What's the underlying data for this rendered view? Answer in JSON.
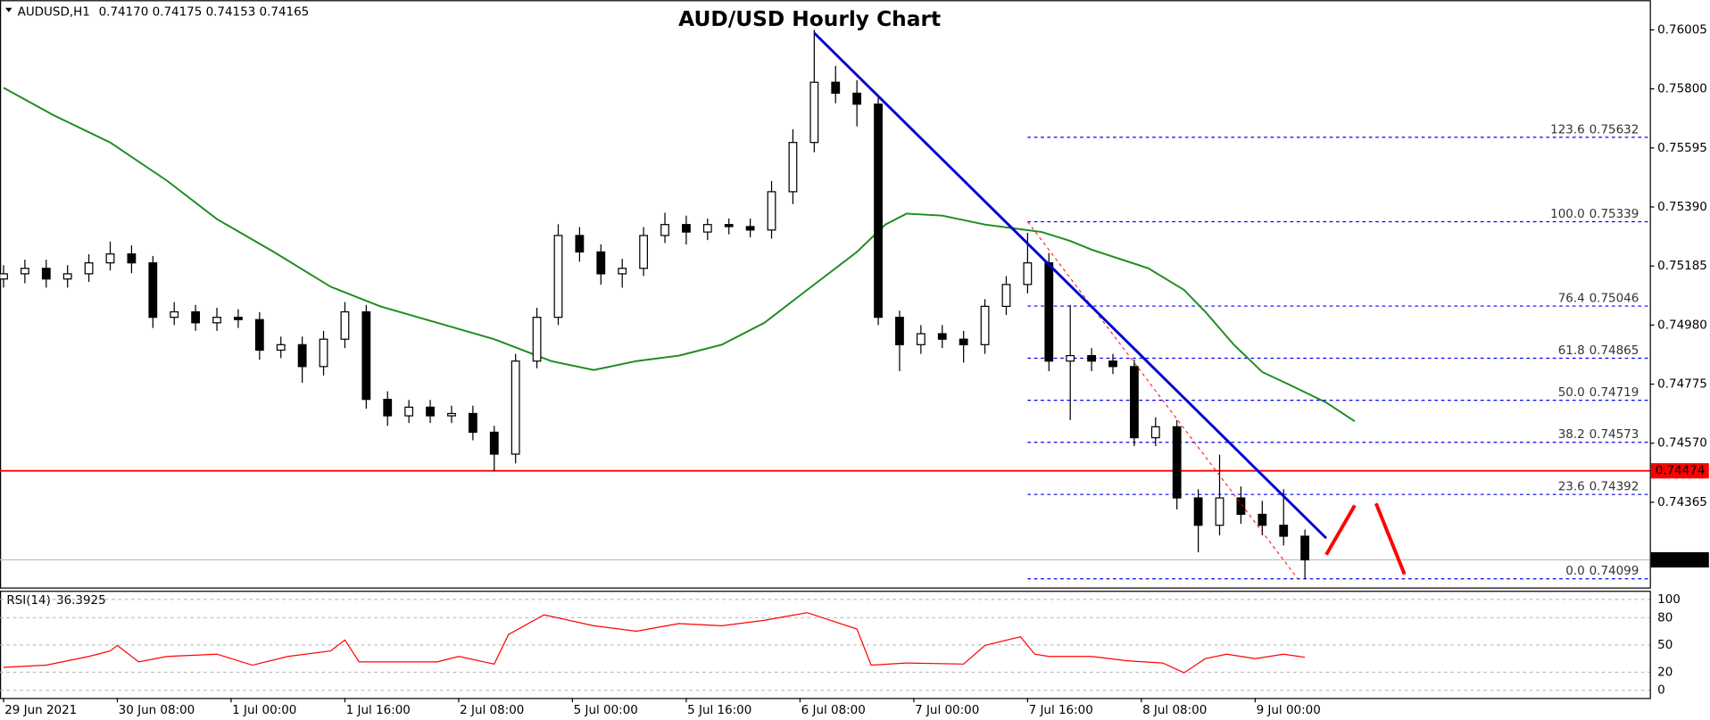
{
  "header": {
    "symbol": "AUDUSD,H1",
    "ohlc": "0.74170 0.74175 0.74153 0.74165"
  },
  "chart_data": [
    {
      "type": "candlestick",
      "title": "AUD/USD Hourly Chart",
      "x": [
        0,
        3,
        6,
        9,
        12,
        15,
        18,
        21,
        24,
        27,
        30,
        33,
        36,
        39,
        42,
        45,
        48,
        51,
        54,
        57,
        60,
        63,
        66,
        69,
        72,
        75,
        78,
        81,
        84,
        87,
        90,
        93,
        96,
        99,
        102,
        105,
        108,
        111,
        114,
        117,
        120,
        123,
        126,
        129,
        132,
        135,
        138,
        141,
        144,
        147,
        150,
        153,
        156,
        159,
        162,
        165,
        168,
        171,
        174,
        177,
        180,
        183
      ],
      "open": [
        0.7514,
        0.75158,
        0.75177,
        0.7514,
        0.75158,
        0.75196,
        0.75227,
        0.75196,
        0.75007,
        0.75026,
        0.74988,
        0.75007,
        0.74999,
        0.74893,
        0.74912,
        0.74836,
        0.74931,
        0.75026,
        0.74722,
        0.74665,
        0.74695,
        0.74665,
        0.74673,
        0.74608,
        0.74532,
        0.74855,
        0.75007,
        0.75291,
        0.75234,
        0.75158,
        0.75177,
        0.75291,
        0.75329,
        0.75303,
        0.75329,
        0.75322,
        0.7531,
        0.75443,
        0.75614,
        0.75823,
        0.75785,
        0.75747,
        0.75007,
        0.74912,
        0.7495,
        0.74931,
        0.74912,
        0.75045,
        0.75121,
        0.75196,
        0.74855,
        0.74874,
        0.74855,
        0.74836,
        0.74589,
        0.74627,
        0.7438,
        0.74285,
        0.7438,
        0.74323,
        0.74285,
        0.74247
      ],
      "high": [
        0.75188,
        0.75207,
        0.75207,
        0.75188,
        0.75226,
        0.7527,
        0.75257,
        0.7522,
        0.7506,
        0.7505,
        0.7504,
        0.75035,
        0.75025,
        0.7494,
        0.7494,
        0.7496,
        0.7506,
        0.7505,
        0.7475,
        0.7472,
        0.7472,
        0.747,
        0.747,
        0.7463,
        0.7488,
        0.7504,
        0.7533,
        0.7532,
        0.7526,
        0.7521,
        0.7532,
        0.7537,
        0.7536,
        0.7535,
        0.7535,
        0.7535,
        0.7548,
        0.7566,
        0.76005,
        0.7588,
        0.7583,
        0.7577,
        0.7503,
        0.7498,
        0.7498,
        0.7496,
        0.7507,
        0.7515,
        0.753,
        0.7523,
        0.7505,
        0.749,
        0.7488,
        0.7486,
        0.7466,
        0.7465,
        0.7441,
        0.7453,
        0.7442,
        0.7437,
        0.7441,
        0.7427
      ],
      "low": [
        0.7511,
        0.75125,
        0.7511,
        0.7511,
        0.7513,
        0.7517,
        0.7516,
        0.7497,
        0.7498,
        0.7496,
        0.7496,
        0.7497,
        0.7486,
        0.74865,
        0.7478,
        0.74805,
        0.749,
        0.7469,
        0.7463,
        0.7464,
        0.7464,
        0.7464,
        0.7458,
        0.74474,
        0.745,
        0.7483,
        0.7498,
        0.752,
        0.7512,
        0.7511,
        0.7515,
        0.75265,
        0.7526,
        0.75275,
        0.75295,
        0.75285,
        0.7528,
        0.754,
        0.7558,
        0.7575,
        0.7567,
        0.7498,
        0.7482,
        0.7488,
        0.749,
        0.7485,
        0.7488,
        0.75015,
        0.7509,
        0.7482,
        0.7465,
        0.7482,
        0.7481,
        0.7456,
        0.7456,
        0.7434,
        0.74191,
        0.7425,
        0.7429,
        0.7425,
        0.74215,
        0.74099
      ],
      "close": [
        0.75158,
        0.75177,
        0.7514,
        0.75158,
        0.75196,
        0.75227,
        0.75196,
        0.75007,
        0.75026,
        0.74988,
        0.75007,
        0.74999,
        0.74893,
        0.74912,
        0.74836,
        0.74931,
        0.75026,
        0.74722,
        0.74665,
        0.74695,
        0.74665,
        0.74673,
        0.74608,
        0.74532,
        0.74855,
        0.75007,
        0.75291,
        0.75234,
        0.75158,
        0.75177,
        0.75291,
        0.75329,
        0.75303,
        0.75329,
        0.75322,
        0.7531,
        0.75443,
        0.75614,
        0.75823,
        0.75785,
        0.75747,
        0.75007,
        0.74912,
        0.7495,
        0.74931,
        0.74912,
        0.75045,
        0.75121,
        0.75196,
        0.74855,
        0.74874,
        0.74855,
        0.74836,
        0.74589,
        0.74627,
        0.7438,
        0.74285,
        0.7438,
        0.74323,
        0.74285,
        0.74247,
        0.74165
      ],
      "up_color": "#ffffff",
      "down_color": "#000000",
      "wick_color": "#000000",
      "xlim": [
        -0.5,
        231.5
      ],
      "ylim": [
        0.74069,
        0.76108
      ],
      "yticks": [
        0.76005,
        {
          "value": 0.758,
          "label": "0.75800"
        },
        0.75595,
        {
          "value": 0.7539,
          "label": "0.75390"
        },
        0.75185,
        {
          "value": 0.7498,
          "label": "0.74980"
        },
        0.74775,
        {
          "value": 0.7457,
          "label": "0.74570"
        },
        0.74365
      ],
      "moving_average": {
        "color": "#1e8c1e",
        "x": [
          0,
          7,
          15,
          23,
          30,
          38,
          46,
          53,
          61,
          69,
          77,
          83,
          89,
          95,
          101,
          107,
          113,
          120,
          124,
          127,
          132,
          138,
          146,
          150,
          153,
          161,
          166,
          169,
          173,
          177,
          181,
          186,
          190
        ],
        "values": [
          0.75804,
          0.75709,
          0.75614,
          0.75481,
          0.75348,
          0.75234,
          0.75113,
          0.75045,
          0.74988,
          0.74931,
          0.74855,
          0.74824,
          0.74855,
          0.74874,
          0.74912,
          0.74988,
          0.75102,
          0.75234,
          0.75329,
          0.75367,
          0.7536,
          0.75329,
          0.75303,
          0.75272,
          0.75242,
          0.75177,
          0.75102,
          0.75026,
          0.74912,
          0.74817,
          0.74771,
          0.74711,
          0.74646
        ]
      },
      "trendline": {
        "color": "#0000cc",
        "x": [
          114,
          186
        ],
        "values": [
          0.75994,
          0.7424
        ]
      },
      "fib_base": {
        "color": "#ff0000",
        "x": [
          144,
          182
        ],
        "values": [
          0.75339,
          0.74099
        ]
      },
      "fib": {
        "color": "#0000ff",
        "x_start": 144,
        "levels": [
          {
            "ratio": "123.6",
            "value": 0.75632
          },
          {
            "ratio": "100.0",
            "value": 0.75339
          },
          {
            "ratio": "76.4",
            "value": 0.75046
          },
          {
            "ratio": "61.8",
            "value": 0.74865
          },
          {
            "ratio": "50.0",
            "value": 0.74719
          },
          {
            "ratio": "38.2",
            "value": 0.74573
          },
          {
            "ratio": "23.6",
            "value": 0.74392
          },
          {
            "ratio": "0.0",
            "value": 0.74099
          }
        ]
      },
      "support": {
        "value": 0.74474,
        "color": "#ff0000"
      },
      "last_price": {
        "value": 0.74165,
        "color": "#c0c0c0"
      },
      "projection": {
        "color": "#ff0000",
        "segments": [
          {
            "x": [
              186,
              190
            ],
            "values": [
              0.74183,
              0.74354
            ]
          },
          {
            "x": [
              193,
              197
            ],
            "values": [
              0.74361,
              0.74115
            ]
          }
        ]
      }
    },
    {
      "type": "line",
      "label": "RSI(14)",
      "last": 36.3925,
      "color": "#ff0000",
      "x": [
        0,
        6,
        12,
        15,
        16,
        19,
        23,
        30,
        35,
        40,
        46,
        48,
        50,
        53,
        61,
        64,
        69,
        71,
        76,
        83,
        89,
        95,
        101,
        107,
        113,
        120,
        122,
        127,
        135,
        138,
        143,
        145,
        147,
        153,
        158,
        163,
        166,
        169,
        172,
        176,
        180,
        183
      ],
      "values": [
        25.3,
        27.7,
        37.3,
        43.4,
        49.4,
        31.3,
        37.3,
        39.8,
        27.7,
        37.3,
        43.4,
        55.4,
        31.3,
        31.3,
        31.3,
        37.3,
        28.9,
        61.4,
        83.1,
        71.1,
        65.1,
        73.5,
        71.1,
        77.1,
        85.5,
        67.5,
        27.7,
        30.1,
        28.9,
        49.4,
        59,
        39.8,
        37.3,
        37.3,
        32.5,
        30.1,
        19.3,
        34.9,
        39.8,
        34.9,
        39.8,
        36.3925
      ],
      "xlim": [
        -0.5,
        231.5
      ],
      "ylim": [
        -8.4,
        109.6
      ],
      "yticks": [
        100,
        80,
        50,
        20,
        0
      ],
      "grid": true,
      "xticks": [
        {
          "value": 0,
          "label": "29 Jun 2021"
        },
        {
          "value": 16,
          "label": "30 Jun 08:00"
        },
        {
          "value": 32,
          "label": "1 Jul 00:00"
        },
        {
          "value": 48,
          "label": "1 Jul 16:00"
        },
        {
          "value": 64,
          "label": "2 Jul 08:00"
        },
        {
          "value": 80,
          "label": "5 Jul 00:00"
        },
        {
          "value": 96,
          "label": "5 Jul 16:00"
        },
        {
          "value": 112,
          "label": "6 Jul 08:00"
        },
        {
          "value": 128,
          "label": "7 Jul 00:00"
        },
        {
          "value": 144,
          "label": "7 Jul 16:00"
        },
        {
          "value": 160,
          "label": "8 Jul 08:00"
        },
        {
          "value": 176,
          "label": "9 Jul 00:00"
        }
      ]
    }
  ]
}
